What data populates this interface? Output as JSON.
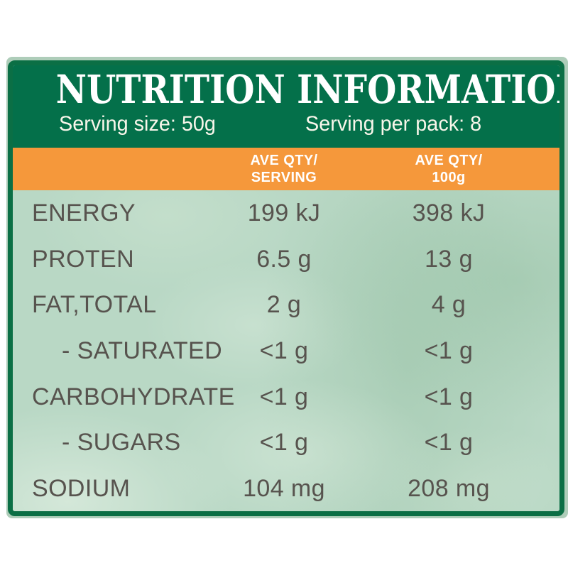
{
  "label": {
    "title": "NUTRITION INFORMATION",
    "serving_size": "Serving size: 50g",
    "serving_per_pack": "Serving per pack: 8",
    "columns": {
      "serving": [
        "AVE QTY/",
        "SERVING"
      ],
      "per100g": [
        "AVE QTY/",
        "100g"
      ]
    }
  },
  "table": {
    "rows": [
      {
        "name": "ENERGY",
        "indent": false,
        "serving": "199 kJ",
        "per100g": "398 kJ"
      },
      {
        "name": "PROTEN",
        "indent": false,
        "serving": "6.5 g",
        "per100g": "13 g"
      },
      {
        "name": "FAT,TOTAL",
        "indent": false,
        "serving": "2 g",
        "per100g": "4 g"
      },
      {
        "name": "- SATURATED",
        "indent": true,
        "serving": "<1 g",
        "per100g": "<1 g"
      },
      {
        "name": "CARBOHYDRATE",
        "indent": false,
        "serving": "<1 g",
        "per100g": "<1 g"
      },
      {
        "name": "- SUGARS",
        "indent": true,
        "serving": "<1 g",
        "per100g": "<1 g"
      },
      {
        "name": "SODIUM",
        "indent": false,
        "serving": "104 mg",
        "per100g": "208 mg"
      }
    ]
  },
  "colors": {
    "frame_green": "#0B6F45",
    "header_green": "#04704A",
    "orange": "#F5983B",
    "body_green": "#B9D8C5",
    "sage": "#AECDB9",
    "text_dark": "#57534E",
    "text_light": "#FFFFFF"
  }
}
